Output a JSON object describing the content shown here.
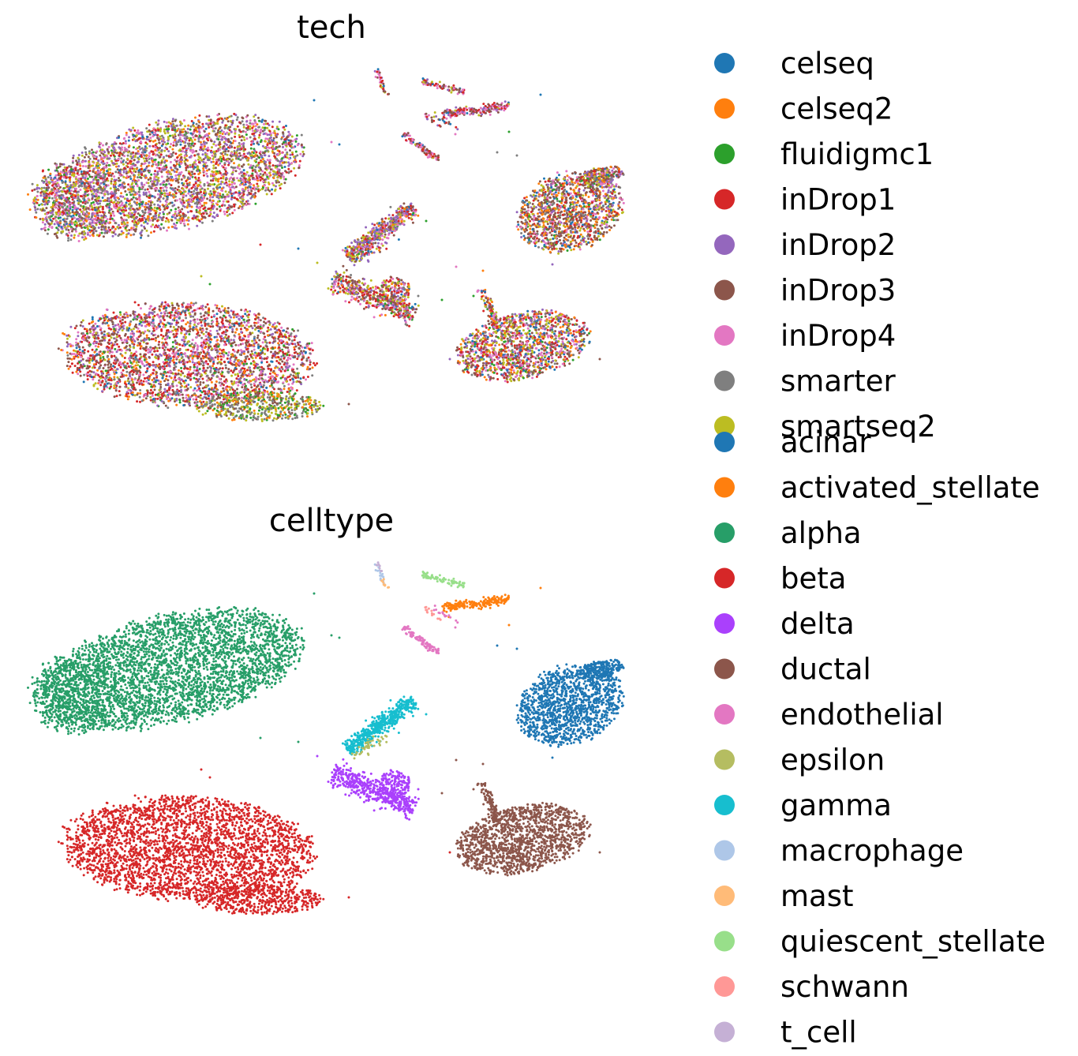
{
  "chart_data": [
    {
      "type": "scatter",
      "title": "tech",
      "xlabel": "",
      "ylabel": "",
      "grid": false,
      "axes_visible": false,
      "legend": "right",
      "series": [
        {
          "name": "celseq",
          "color": "#1f77b4"
        },
        {
          "name": "celseq2",
          "color": "#ff7f0e"
        },
        {
          "name": "fluidigmc1",
          "color": "#2ca02c"
        },
        {
          "name": "inDrop1",
          "color": "#d62728"
        },
        {
          "name": "inDrop2",
          "color": "#9467bd"
        },
        {
          "name": "inDrop3",
          "color": "#8c564b"
        },
        {
          "name": "inDrop4",
          "color": "#e377c2"
        },
        {
          "name": "smarter",
          "color": "#7f7f7f"
        },
        {
          "name": "smartseq2",
          "color": "#bcbd22"
        }
      ]
    },
    {
      "type": "scatter",
      "title": "celltype",
      "xlabel": "",
      "ylabel": "",
      "grid": false,
      "axes_visible": false,
      "legend": "right",
      "series": [
        {
          "name": "acinar",
          "color": "#1f77b4"
        },
        {
          "name": "activated_stellate",
          "color": "#ff7f0e"
        },
        {
          "name": "alpha",
          "color": "#279e68"
        },
        {
          "name": "beta",
          "color": "#d62728"
        },
        {
          "name": "delta",
          "color": "#aa40fc"
        },
        {
          "name": "ductal",
          "color": "#8c564b"
        },
        {
          "name": "endothelial",
          "color": "#e377c2"
        },
        {
          "name": "epsilon",
          "color": "#b5bd61"
        },
        {
          "name": "gamma",
          "color": "#17becf"
        },
        {
          "name": "macrophage",
          "color": "#aec7e8"
        },
        {
          "name": "mast",
          "color": "#ffbb78"
        },
        {
          "name": "quiescent_stellate",
          "color": "#98df8a"
        },
        {
          "name": "schwann",
          "color": "#ff9896"
        },
        {
          "name": "t_cell",
          "color": "#c5b0d5"
        }
      ]
    }
  ]
}
